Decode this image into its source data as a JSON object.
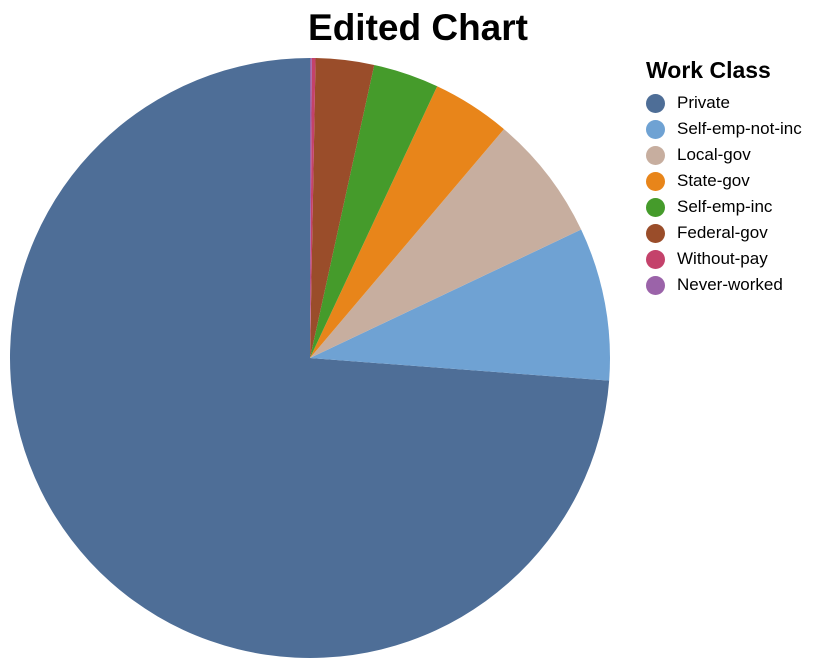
{
  "chart_data": {
    "type": "pie",
    "title": "Edited Chart",
    "legend_title": "Work Class",
    "legend_position": "right",
    "categories": [
      "Private",
      "Self-emp-not-inc",
      "Local-gov",
      "State-gov",
      "Self-emp-inc",
      "Federal-gov",
      "Without-pay",
      "Never-worked"
    ],
    "values": [
      75.2,
      8.4,
      6.9,
      4.3,
      3.6,
      3.2,
      0.2,
      0.1
    ],
    "colors": [
      "#4e6e97",
      "#6fa2d3",
      "#c7ae9f",
      "#e8851a",
      "#459b2b",
      "#9a4d2a",
      "#c4426b",
      "#9b63a9"
    ]
  }
}
